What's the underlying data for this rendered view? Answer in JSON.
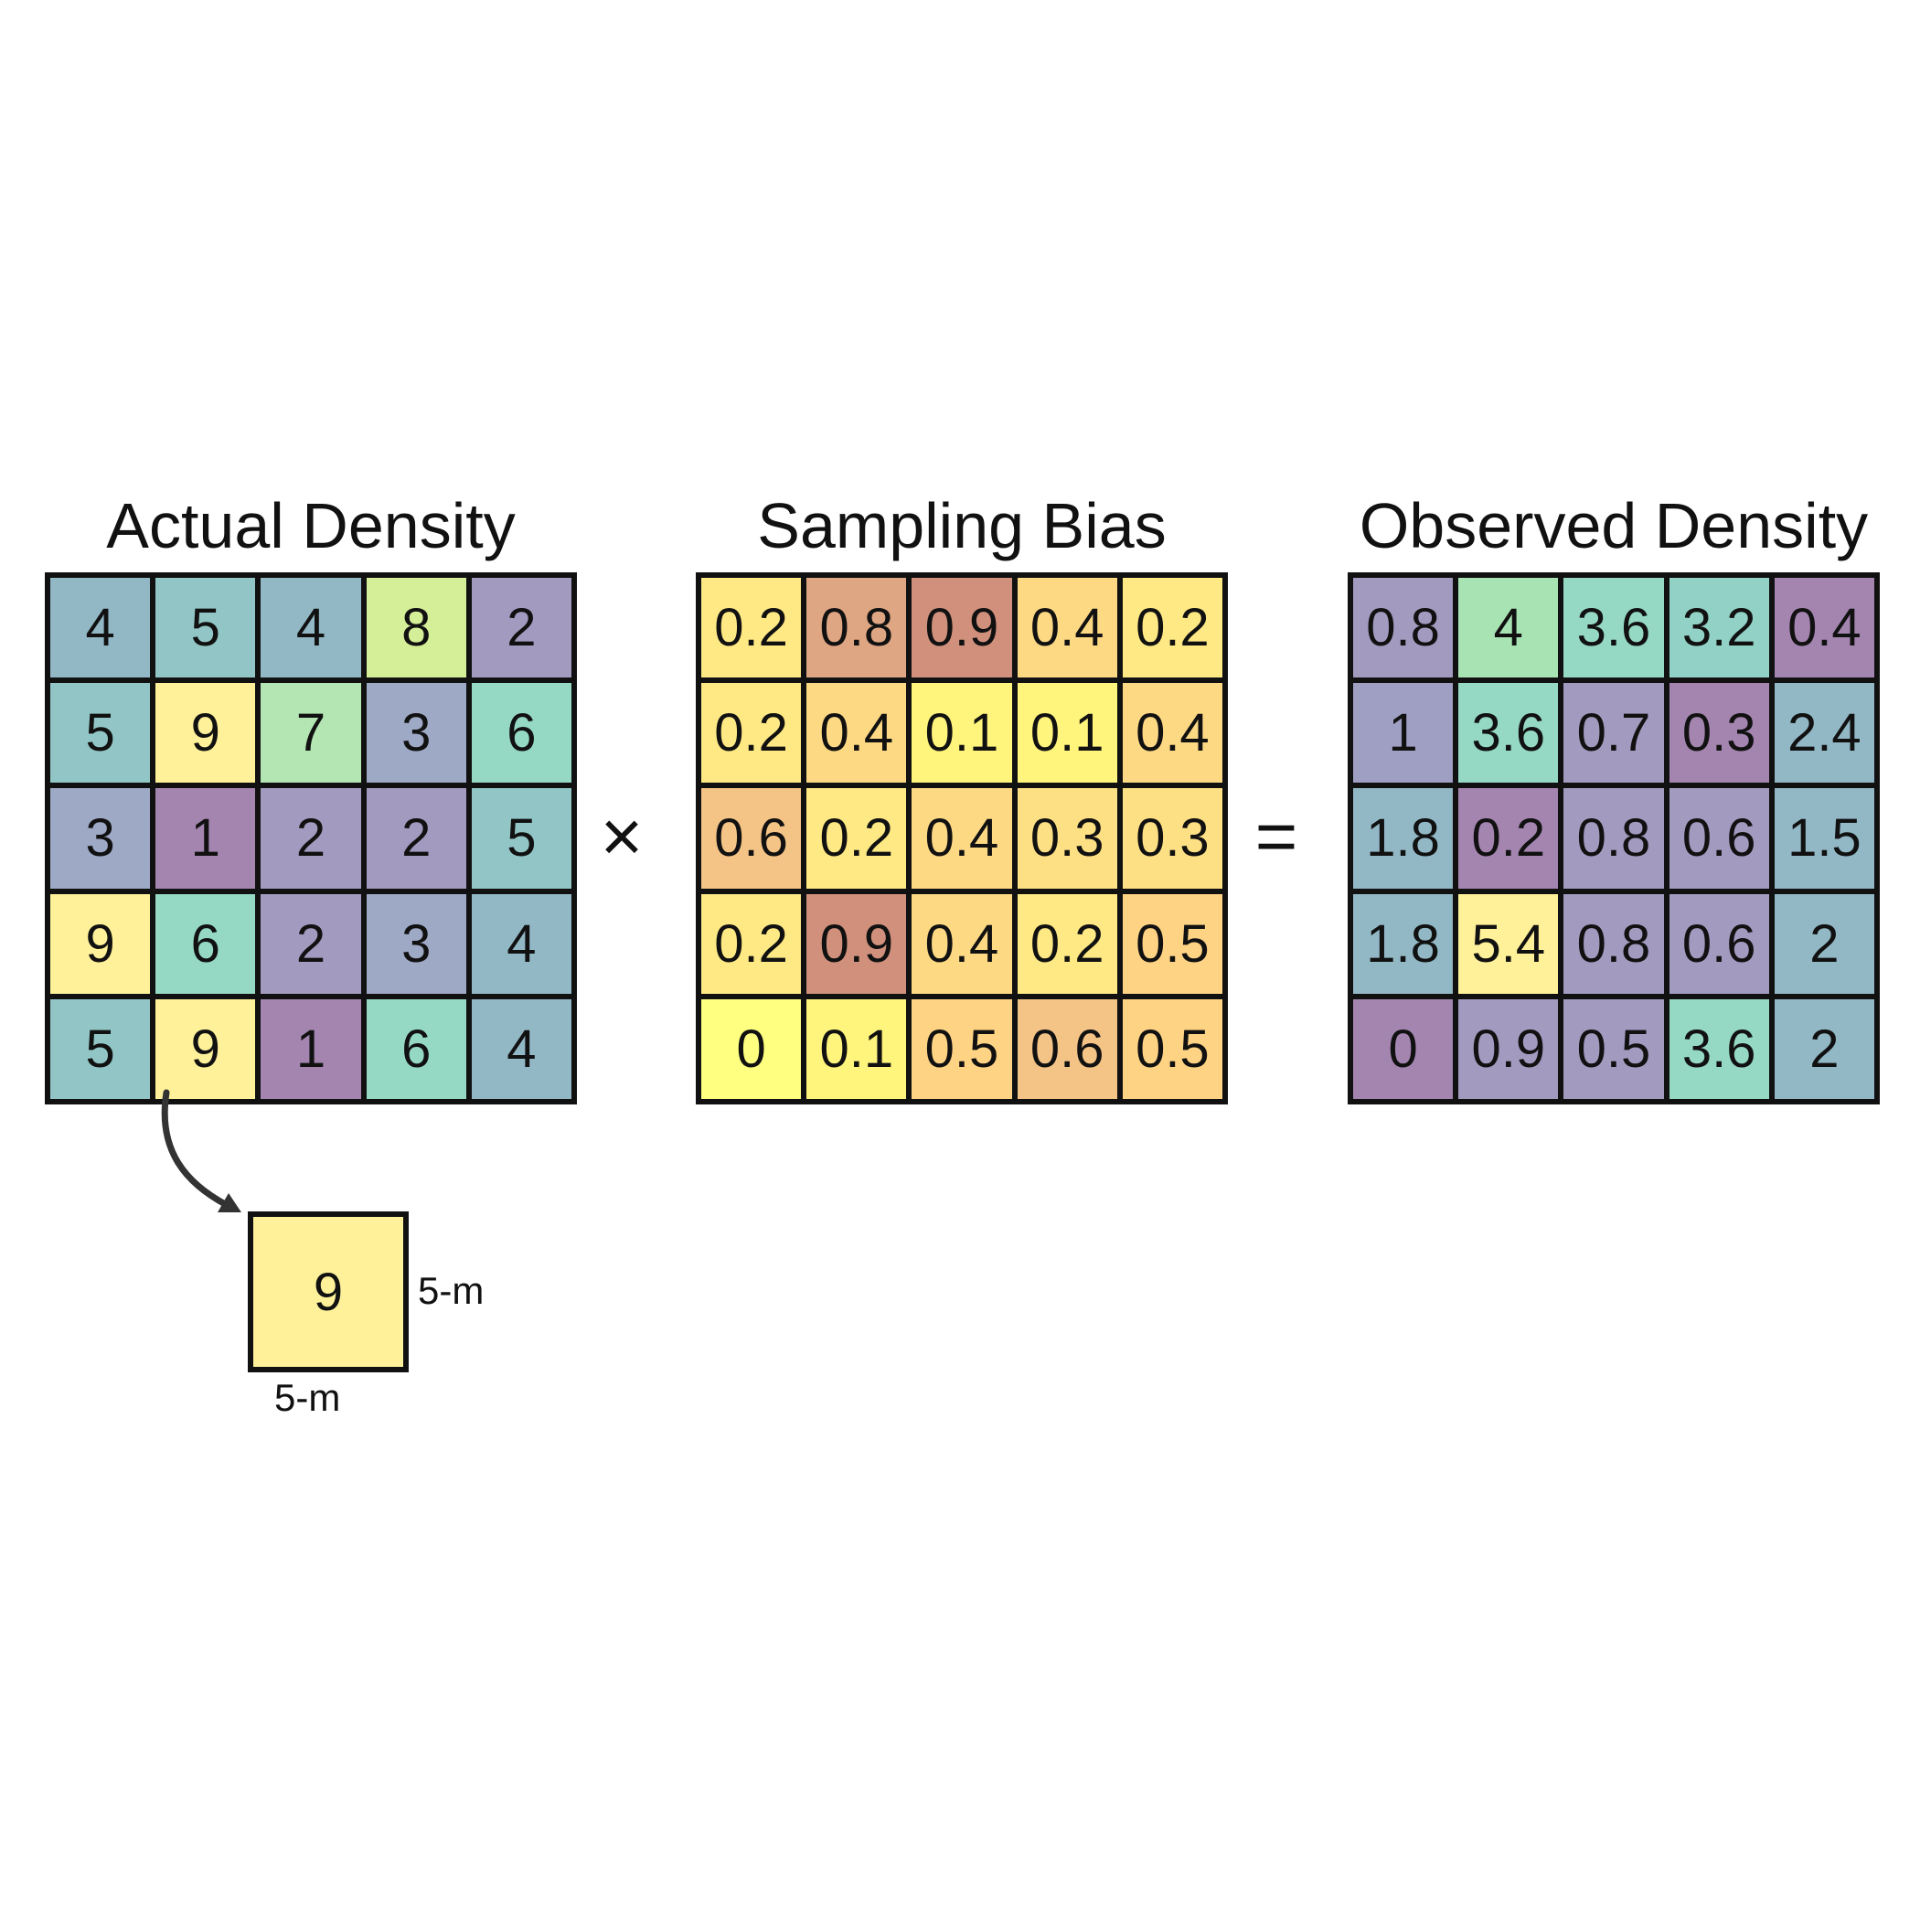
{
  "actual": {
    "title": "Actual Density",
    "cells": [
      [
        "4",
        "5",
        "4",
        "8",
        "2"
      ],
      [
        "5",
        "9",
        "7",
        "3",
        "6"
      ],
      [
        "3",
        "1",
        "2",
        "2",
        "5"
      ],
      [
        "9",
        "6",
        "2",
        "3",
        "4"
      ],
      [
        "5",
        "9",
        "1",
        "6",
        "4"
      ]
    ],
    "colors": [
      [
        "#92b8c6",
        "#92c6c6",
        "#92b8c6",
        "#d5ee98",
        "#a39abf"
      ],
      [
        "#92c6c6",
        "#fff199",
        "#b3e6b3",
        "#9ea9c6",
        "#95d9c4"
      ],
      [
        "#9ea9c6",
        "#a485b0",
        "#a39abf",
        "#a39abf",
        "#92c6c6"
      ],
      [
        "#fff199",
        "#95d9c4",
        "#a39abf",
        "#9ea9c6",
        "#92b8c6"
      ],
      [
        "#92c6c6",
        "#fff199",
        "#a485b0",
        "#95d9c4",
        "#92b8c6"
      ]
    ]
  },
  "operator_times": "×",
  "bias": {
    "title": "Sampling Bias",
    "cells": [
      [
        "0.2",
        "0.8",
        "0.9",
        "0.4",
        "0.2"
      ],
      [
        "0.2",
        "0.4",
        "0.1",
        "0.1",
        "0.4"
      ],
      [
        "0.6",
        "0.2",
        "0.4",
        "0.3",
        "0.3"
      ],
      [
        "0.2",
        "0.9",
        "0.4",
        "0.2",
        "0.5"
      ],
      [
        "0",
        "0.1",
        "0.5",
        "0.6",
        "0.5"
      ]
    ],
    "colors": [
      [
        "#fee984",
        "#dfa683",
        "#d0907c",
        "#fed984",
        "#fee984"
      ],
      [
        "#fee984",
        "#fed984",
        "#fff47c",
        "#fff47c",
        "#fed984"
      ],
      [
        "#f4c486",
        "#fee984",
        "#fed984",
        "#fee084",
        "#fee084"
      ],
      [
        "#fee984",
        "#d0907c",
        "#fed984",
        "#fee984",
        "#fed384"
      ],
      [
        "#ffff80",
        "#fff47c",
        "#fed384",
        "#f4c486",
        "#fed384"
      ]
    ]
  },
  "operator_equals": "=",
  "observed": {
    "title": "Observed Density",
    "cells": [
      [
        "0.8",
        "4",
        "3.6",
        "3.2",
        "0.4"
      ],
      [
        "1",
        "3.6",
        "0.7",
        "0.3",
        "2.4"
      ],
      [
        "1.8",
        "0.2",
        "0.8",
        "0.6",
        "1.5"
      ],
      [
        "1.8",
        "5.4",
        "0.8",
        "0.6",
        "2"
      ],
      [
        "0",
        "0.9",
        "0.5",
        "3.6",
        "2"
      ]
    ],
    "colors": [
      [
        "#a39abf",
        "#a8e3b3",
        "#95d9c4",
        "#92d1c6",
        "#a485b0"
      ],
      [
        "#9e9fc3",
        "#95d9c4",
        "#a39abf",
        "#a485b0",
        "#92b8c6"
      ],
      [
        "#92b8c6",
        "#a485b0",
        "#a39abf",
        "#a39abf",
        "#92b8c6"
      ],
      [
        "#92b8c6",
        "#fff199",
        "#a39abf",
        "#a39abf",
        "#92b8c6"
      ],
      [
        "#a485b0",
        "#a39abf",
        "#a39abf",
        "#95d9c4",
        "#92b8c6"
      ]
    ]
  },
  "inset": {
    "value": "9",
    "color": "#fff199",
    "width_label": "5-m",
    "height_label": "5-m"
  }
}
